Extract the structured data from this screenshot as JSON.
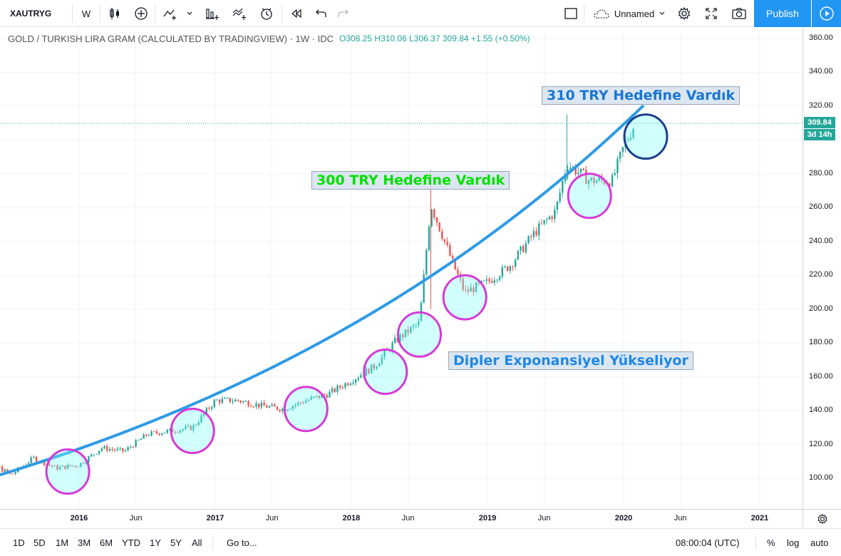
{
  "toolbar": {
    "symbol": "XAUTRYG",
    "interval": "W",
    "layout_name": "Unnamed",
    "publish_label": "Publish"
  },
  "legend": {
    "title": "GOLD / TURKISH LIRA GRAM (CALCULATED BY TRADINGVIEW) · 1W · IDC",
    "open_label": "O",
    "open": "308.25",
    "high_label": "H",
    "high": "310.06",
    "low_label": "L",
    "low": "306.37",
    "close": "309.84",
    "change": "+1.55 (+0.50%)"
  },
  "annotations": {
    "target_310": "310 TRY Hedefine Vardık",
    "target_300": "300 TRY Hedefine Vardık",
    "dips": "Dipler Exponansiyel Yükseliyor"
  },
  "price_axis": {
    "ticks": [
      "360.00",
      "340.00",
      "320.00",
      "280.00",
      "260.00",
      "240.00",
      "220.00",
      "200.00",
      "180.00",
      "160.00",
      "140.00",
      "120.00",
      "100.00"
    ],
    "last_price": "309.84",
    "countdown": "3d 14h"
  },
  "time_axis": {
    "ticks": [
      "2016",
      "Jun",
      "2017",
      "Jun",
      "2018",
      "Jun",
      "2019",
      "Jun",
      "2020",
      "Jun",
      "2021"
    ]
  },
  "bottombar": {
    "ranges": [
      "1D",
      "5D",
      "1M",
      "3M",
      "6M",
      "YTD",
      "1Y",
      "5Y",
      "All"
    ],
    "goto": "Go to...",
    "clock": "08:00:04 (UTC)",
    "percent": "%",
    "log": "log",
    "auto": "auto"
  },
  "chart_data": {
    "type": "candlestick",
    "title": "GOLD / TURKISH LIRA GRAM (CALCULATED BY TRADINGVIEW)",
    "interval": "1W",
    "ylim": [
      90,
      365
    ],
    "x_range": [
      "2015-03",
      "2021-03"
    ],
    "series": [
      {
        "name": "XAUTRYG",
        "points": [
          [
            "2015-03",
            104
          ],
          [
            "2015-05",
            110
          ],
          [
            "2015-07",
            102
          ],
          [
            "2015-09",
            112
          ],
          [
            "2015-11",
            106
          ],
          [
            "2016-01",
            108
          ],
          [
            "2016-03",
            118
          ],
          [
            "2016-05",
            116
          ],
          [
            "2016-07",
            126
          ],
          [
            "2016-09",
            128
          ],
          [
            "2016-11",
            130
          ],
          [
            "2017-01",
            146
          ],
          [
            "2017-03",
            146
          ],
          [
            "2017-05",
            143
          ],
          [
            "2017-07",
            141
          ],
          [
            "2017-09",
            146
          ],
          [
            "2017-11",
            150
          ],
          [
            "2018-01",
            158
          ],
          [
            "2018-03",
            166
          ],
          [
            "2018-05",
            182
          ],
          [
            "2018-07",
            192
          ],
          [
            "2018-08",
            262
          ],
          [
            "2018-09",
            244
          ],
          [
            "2018-10",
            226
          ],
          [
            "2018-11",
            210
          ],
          [
            "2019-01",
            216
          ],
          [
            "2019-03",
            226
          ],
          [
            "2019-05",
            244
          ],
          [
            "2019-07",
            258
          ],
          [
            "2019-08",
            286
          ],
          [
            "2019-10",
            276
          ],
          [
            "2019-12",
            276
          ],
          [
            "2020-01",
            296
          ],
          [
            "2020-02",
            309.84
          ]
        ]
      }
    ],
    "trendline": {
      "name": "",
      "type": "exponential",
      "points": [
        [
          "2015-03",
          96
        ],
        [
          "2016-01",
          106
        ],
        [
          "2017-01",
          124
        ],
        [
          "2018-01",
          150
        ],
        [
          "2019-01",
          198
        ],
        [
          "2019-12",
          268
        ],
        [
          "2020-03",
          322
        ]
      ]
    },
    "highlighted_dips": [
      "2015-12",
      "2016-11",
      "2017-09",
      "2018-04",
      "2018-07",
      "2018-11",
      "2019-10",
      "2020-02"
    ],
    "last_price_line": 309.84
  }
}
